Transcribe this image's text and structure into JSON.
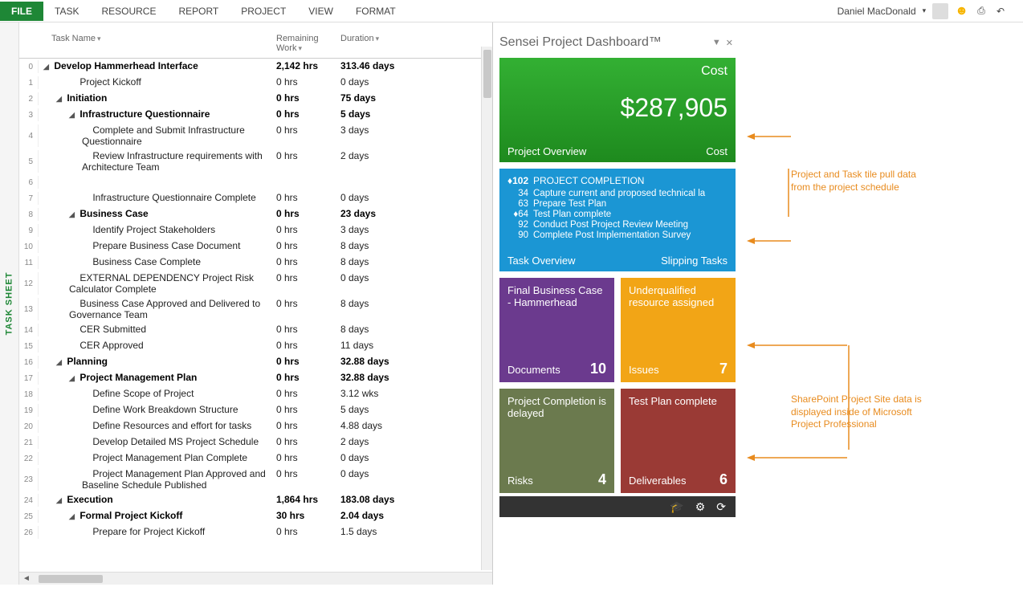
{
  "ribbon": {
    "tabs": [
      "FILE",
      "TASK",
      "RESOURCE",
      "REPORT",
      "PROJECT",
      "VIEW",
      "FORMAT"
    ],
    "active": 0,
    "user": "Daniel MacDonald"
  },
  "vtab": "TASK SHEET",
  "sheet_headers": {
    "c1": "Task Name",
    "c2": "Remaining Work",
    "c3": "Duration"
  },
  "tasks": [
    {
      "n": 0,
      "ind": 0,
      "b": 1,
      "tri": 1,
      "name": "Develop Hammerhead Interface",
      "w": "2,142 hrs",
      "d": "313.46 days"
    },
    {
      "n": 1,
      "ind": 2,
      "b": 0,
      "tri": 0,
      "name": "Project Kickoff",
      "w": "0 hrs",
      "d": "0 days"
    },
    {
      "n": 2,
      "ind": 1,
      "b": 1,
      "tri": 1,
      "name": "Initiation",
      "w": "0 hrs",
      "d": "75 days"
    },
    {
      "n": 3,
      "ind": 2,
      "b": 1,
      "tri": 1,
      "name": "Infrastructure Questionnaire",
      "w": "0 hrs",
      "d": "5 days"
    },
    {
      "n": 4,
      "ind": 3,
      "b": 0,
      "tri": 0,
      "name": "Complete and Submit Infrastructure Questionnaire",
      "w": "0 hrs",
      "d": "3 days"
    },
    {
      "n": 5,
      "ind": 3,
      "b": 0,
      "tri": 0,
      "name": "Review Infrastructure requirements with Architecture Team",
      "w": "0 hrs",
      "d": "2 days"
    },
    {
      "n": 6,
      "ind": 3,
      "b": 0,
      "tri": 0,
      "name": " ",
      "w": "",
      "d": ""
    },
    {
      "n": 7,
      "ind": 3,
      "b": 0,
      "tri": 0,
      "name": "Infrastructure Questionnaire Complete",
      "w": "0 hrs",
      "d": "0 days"
    },
    {
      "n": 8,
      "ind": 2,
      "b": 1,
      "tri": 1,
      "name": "Business Case",
      "w": "0 hrs",
      "d": "23 days"
    },
    {
      "n": 9,
      "ind": 3,
      "b": 0,
      "tri": 0,
      "name": "Identify Project Stakeholders",
      "w": "0 hrs",
      "d": "3 days"
    },
    {
      "n": 10,
      "ind": 3,
      "b": 0,
      "tri": 0,
      "name": "Prepare Business Case Document",
      "w": "0 hrs",
      "d": "8 days"
    },
    {
      "n": 11,
      "ind": 3,
      "b": 0,
      "tri": 0,
      "name": "Business Case Complete",
      "w": "0 hrs",
      "d": "8 days"
    },
    {
      "n": 12,
      "ind": 2,
      "b": 0,
      "tri": 0,
      "name": "EXTERNAL DEPENDENCY  Project Risk Calculator Complete",
      "w": "0 hrs",
      "d": "0 days"
    },
    {
      "n": 13,
      "ind": 2,
      "b": 0,
      "tri": 0,
      "name": "Business Case Approved and Delivered to Governance Team",
      "w": "0 hrs",
      "d": "8 days"
    },
    {
      "n": 14,
      "ind": 2,
      "b": 0,
      "tri": 0,
      "name": "CER Submitted",
      "w": "0 hrs",
      "d": "8 days"
    },
    {
      "n": 15,
      "ind": 2,
      "b": 0,
      "tri": 0,
      "name": "CER Approved",
      "w": "0 hrs",
      "d": "11 days"
    },
    {
      "n": 16,
      "ind": 1,
      "b": 1,
      "tri": 1,
      "name": "Planning",
      "w": "0 hrs",
      "d": "32.88 days"
    },
    {
      "n": 17,
      "ind": 2,
      "b": 1,
      "tri": 1,
      "name": "Project Management Plan",
      "w": "0 hrs",
      "d": "32.88 days"
    },
    {
      "n": 18,
      "ind": 3,
      "b": 0,
      "tri": 0,
      "name": "Define Scope of Project",
      "w": "0 hrs",
      "d": "3.12 wks"
    },
    {
      "n": 19,
      "ind": 3,
      "b": 0,
      "tri": 0,
      "name": "Define Work Breakdown Structure",
      "w": "0 hrs",
      "d": "5 days"
    },
    {
      "n": 20,
      "ind": 3,
      "b": 0,
      "tri": 0,
      "name": "Define Resources and effort for tasks",
      "w": "0 hrs",
      "d": "4.88 days"
    },
    {
      "n": 21,
      "ind": 3,
      "b": 0,
      "tri": 0,
      "name": "Develop Detailed MS Project Schedule",
      "w": "0 hrs",
      "d": "2 days"
    },
    {
      "n": 22,
      "ind": 3,
      "b": 0,
      "tri": 0,
      "name": "Project Management Plan Complete",
      "w": "0 hrs",
      "d": "0 days"
    },
    {
      "n": 23,
      "ind": 3,
      "b": 0,
      "tri": 0,
      "name": "Project Management Plan Approved and Baseline Schedule Published",
      "w": "0 hrs",
      "d": "0 days"
    },
    {
      "n": 24,
      "ind": 1,
      "b": 1,
      "tri": 1,
      "name": "Execution",
      "w": "1,864 hrs",
      "d": "183.08 days"
    },
    {
      "n": 25,
      "ind": 2,
      "b": 1,
      "tri": 1,
      "name": "Formal Project Kickoff",
      "w": "30 hrs",
      "d": "2.04 days"
    },
    {
      "n": 26,
      "ind": 3,
      "b": 0,
      "tri": 0,
      "name": "Prepare for Project Kickoff",
      "w": "0 hrs",
      "d": "1.5 days"
    }
  ],
  "dash": {
    "title": "Sensei Project Dashboard™",
    "cost": {
      "label": "Cost",
      "value": "$287,905",
      "left": "Project Overview",
      "right": "Cost"
    },
    "completion": {
      "header_n": "♦102",
      "header_t": "PROJECT COMPLETION",
      "rows": [
        {
          "n": "34",
          "t": "Capture current and proposed technical la"
        },
        {
          "n": "63",
          "t": "Prepare Test Plan"
        },
        {
          "n": "♦64",
          "t": "Test Plan complete"
        },
        {
          "n": "92",
          "t": "Conduct Post Project Review Meeting"
        },
        {
          "n": "90",
          "t": "Complete Post Implementation Survey"
        }
      ],
      "left": "Task Overview",
      "right": "Slipping Tasks"
    },
    "docs": {
      "title": "Final Business Case - Hammerhead",
      "label": "Documents",
      "count": "10"
    },
    "issues": {
      "title": "Underqualified resource assigned",
      "label": "Issues",
      "count": "7"
    },
    "risks": {
      "title": "Project Completion is delayed",
      "label": "Risks",
      "count": "4"
    },
    "deliv": {
      "title": "Test Plan complete",
      "label": "Deliverables",
      "count": "6"
    }
  },
  "annotations": {
    "top": "Project and Task tile pull data from the project schedule",
    "bottom": "SharePoint Project Site data is displayed inside of Microsoft Project Professional"
  }
}
